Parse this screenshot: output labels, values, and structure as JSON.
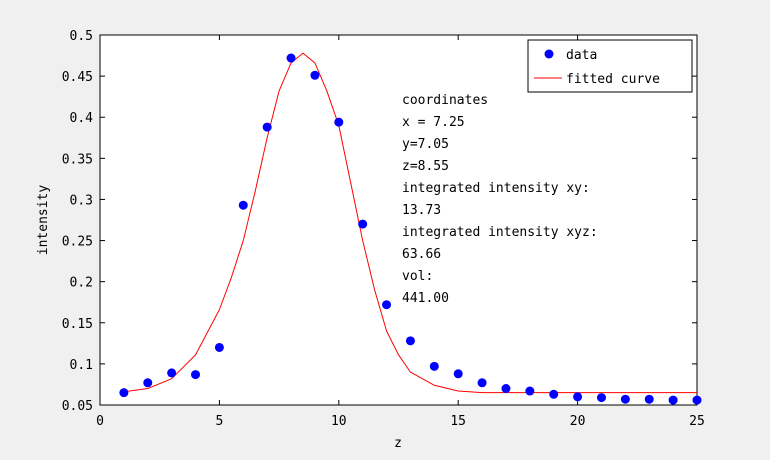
{
  "chart_data": {
    "type": "scatter",
    "title": "",
    "xlabel": "z",
    "ylabel": "intensity",
    "xlim": [
      0,
      25
    ],
    "ylim": [
      0.05,
      0.5
    ],
    "xticks": [
      0,
      5,
      10,
      15,
      20,
      25
    ],
    "yticks": [
      0.05,
      0.1,
      0.15,
      0.2,
      0.25,
      0.3,
      0.35,
      0.4,
      0.45,
      0.5
    ],
    "grid": false,
    "legend_position": "top-right",
    "series": [
      {
        "name": "data",
        "kind": "markers",
        "color": "#0000ff",
        "x": [
          1,
          2,
          3,
          4,
          5,
          6,
          7,
          8,
          9,
          10,
          11,
          12,
          13,
          14,
          15,
          16,
          17,
          18,
          19,
          20,
          21,
          22,
          23,
          24,
          25
        ],
        "y": [
          0.065,
          0.077,
          0.089,
          0.087,
          0.12,
          0.293,
          0.388,
          0.472,
          0.451,
          0.394,
          0.27,
          0.172,
          0.128,
          0.097,
          0.088,
          0.077,
          0.07,
          0.067,
          0.063,
          0.06,
          0.059,
          0.057,
          0.057,
          0.056,
          0.056
        ]
      },
      {
        "name": "fitted curve",
        "kind": "line",
        "color": "#ff0000",
        "x": [
          1,
          2,
          3,
          4,
          5,
          5.5,
          6,
          6.5,
          7,
          7.5,
          8,
          8.5,
          9,
          9.5,
          10,
          10.5,
          11,
          11.5,
          12,
          12.5,
          13,
          14,
          15,
          16,
          17,
          18,
          19,
          20,
          21,
          22,
          23,
          24,
          25
        ],
        "y": [
          0.066,
          0.07,
          0.082,
          0.111,
          0.166,
          0.205,
          0.25,
          0.31,
          0.375,
          0.432,
          0.466,
          0.478,
          0.466,
          0.432,
          0.39,
          0.32,
          0.25,
          0.19,
          0.14,
          0.111,
          0.09,
          0.074,
          0.067,
          0.065,
          0.065,
          0.065,
          0.065,
          0.065,
          0.065,
          0.065,
          0.065,
          0.065,
          0.065
        ]
      }
    ],
    "annotation_lines": [
      "coordinates",
      "x = 7.25",
      "y=7.05",
      "z=8.55",
      "integrated intensity xy:",
      "13.73",
      "integrated intensity xyz:",
      "63.66",
      "vol:",
      "441.00"
    ]
  }
}
